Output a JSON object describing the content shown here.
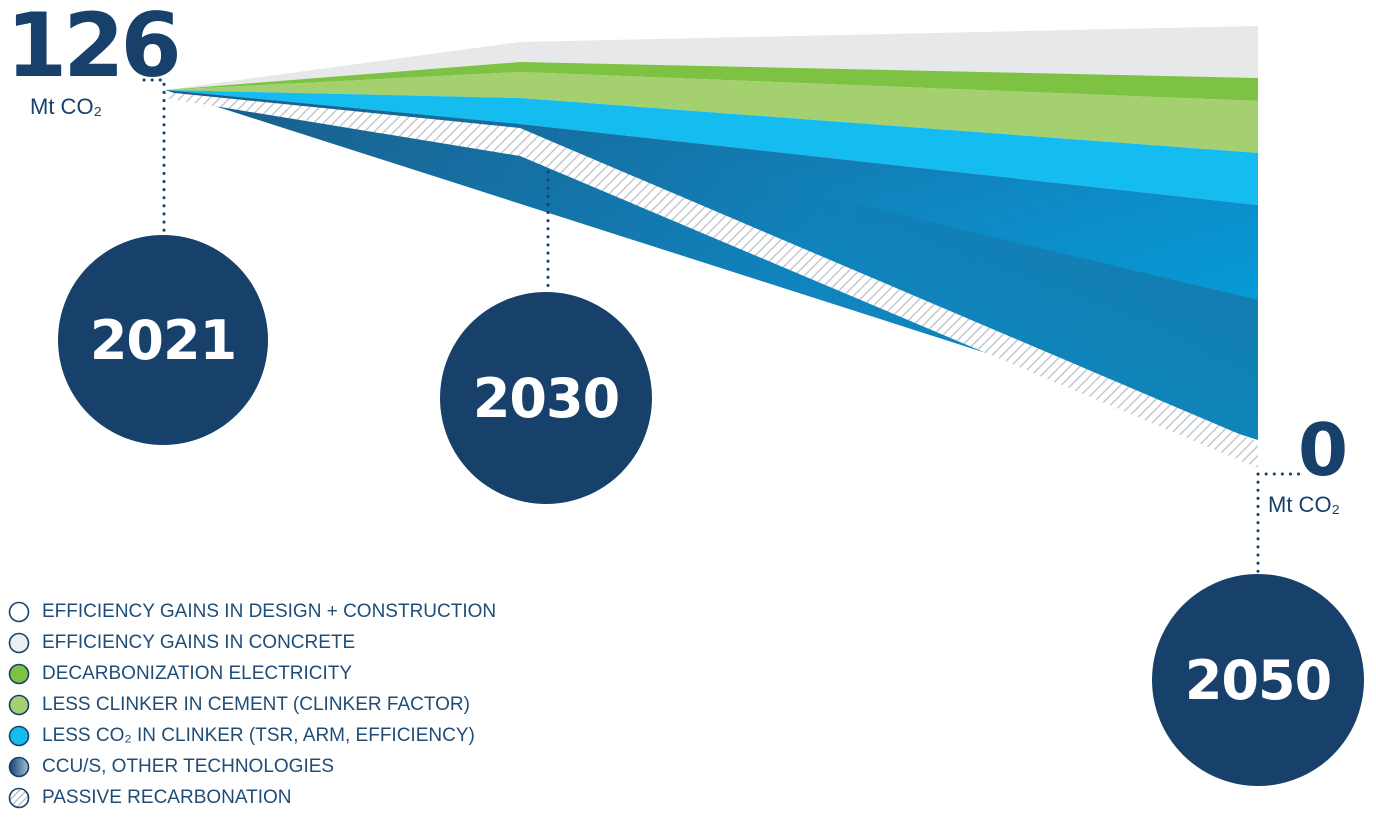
{
  "start_value": {
    "number": "126",
    "unit": "Mt CO₂"
  },
  "end_value": {
    "number": "0",
    "unit": "Mt CO₂"
  },
  "years": [
    "2021",
    "2030",
    "2050"
  ],
  "colors": {
    "navy": "#17416b",
    "design_construction": "#f5f6f7",
    "concrete": "#e6e8ea",
    "electricity": "#7dc243",
    "clinker_factor": "#a4d070",
    "clinker_co2": "#14bcef",
    "ccus_light": "#00a6e4",
    "ccus_dark": "#1b5d89",
    "recarbonation": "#c9ced3"
  },
  "legend": [
    {
      "label": "EFFICIENCY GAINS IN DESIGN + CONSTRUCTION",
      "swatch": "outline-white"
    },
    {
      "label": "EFFICIENCY GAINS IN CONCRETE",
      "swatch": "outline-grey"
    },
    {
      "label": "DECARBONIZATION ELECTRICITY",
      "swatch": "green"
    },
    {
      "label": "LESS CLINKER IN CEMENT (CLINKER FACTOR)",
      "swatch": "light-green"
    },
    {
      "label": "LESS CO₂ IN CLINKER (TSR, ARM, EFFICIENCY)",
      "swatch": "cyan"
    },
    {
      "label": "CCU/S, OTHER TECHNOLOGIES",
      "swatch": "gradient-blue"
    },
    {
      "label": "PASSIVE RECARBONATION",
      "swatch": "hatched"
    }
  ],
  "chart_data": {
    "type": "area",
    "x": [
      "2021",
      "2030",
      "2050"
    ],
    "ylim": [
      0,
      126
    ],
    "start_total": 126,
    "end_total": 0,
    "series": [
      {
        "name": "EFFICIENCY GAINS IN DESIGN + CONSTRUCTION",
        "values": [
          0,
          4,
          12
        ]
      },
      {
        "name": "EFFICIENCY GAINS IN CONCRETE",
        "values": [
          0,
          6,
          13
        ]
      },
      {
        "name": "DECARBONIZATION ELECTRICITY",
        "values": [
          0,
          2,
          5
        ]
      },
      {
        "name": "LESS CLINKER IN CEMENT (CLINKER FACTOR)",
        "values": [
          0,
          7,
          18
        ]
      },
      {
        "name": "LESS CO₂ IN CLINKER (TSR, ARM, EFFICIENCY)",
        "values": [
          0,
          5,
          12
        ]
      },
      {
        "name": "CCU/S, OTHER TECHNOLOGIES",
        "values": [
          0,
          1,
          56
        ]
      },
      {
        "name": "PASSIVE RECARBONATION",
        "values": [
          0,
          4,
          10
        ]
      }
    ]
  }
}
